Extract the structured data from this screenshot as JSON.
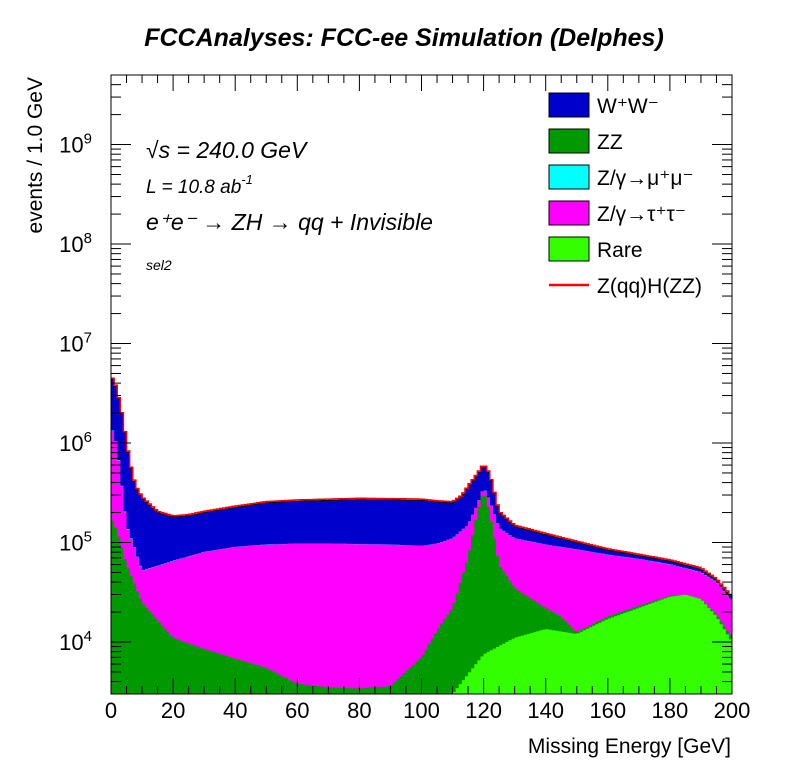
{
  "chart_data": {
    "type": "area",
    "stacked": true,
    "title": "FCCAnalyses: FCC-ee Simulation (Delphes)",
    "xlabel": "Missing Energy [GeV]",
    "ylabel": "events / 1.0 GeV",
    "xlim": [
      0,
      200
    ],
    "ylim": [
      3000,
      5000000000
    ],
    "yscale": "log",
    "x_ticks": [
      "0",
      "20",
      "40",
      "60",
      "80",
      "100",
      "120",
      "140",
      "160",
      "180",
      "200"
    ],
    "y_ticks": [
      {
        "value": 10000,
        "mantissa": "10",
        "exp": "4"
      },
      {
        "value": 100000,
        "mantissa": "10",
        "exp": "5"
      },
      {
        "value": 1000000,
        "mantissa": "10",
        "exp": "6"
      },
      {
        "value": 10000000,
        "mantissa": "10",
        "exp": "7"
      },
      {
        "value": 100000000,
        "mantissa": "10",
        "exp": "8"
      },
      {
        "value": 1000000000,
        "mantissa": "10",
        "exp": "9"
      }
    ],
    "annotations": {
      "sqrt_s": "√s = 240.0 GeV",
      "lumi_base": "L = 10.8 ab",
      "lumi_exp": "-1",
      "process": "e⁺e⁻ → ZH → qq + Invisible",
      "selection": "sel2"
    },
    "legend": {
      "placement": "top-right",
      "entries": [
        {
          "label": "W⁺W⁻",
          "color": "#0000cc",
          "style": "fill"
        },
        {
          "label": "ZZ",
          "color": "#009900",
          "style": "fill"
        },
        {
          "label": "Z/γ→μ⁺μ⁻",
          "color": "#00ffff",
          "style": "fill"
        },
        {
          "label": "Z/γ→τ⁺τ⁻",
          "color": "#ff00ff",
          "style": "fill"
        },
        {
          "label": "Rare",
          "color": "#33ff00",
          "style": "fill"
        },
        {
          "label": "Z(qq)H(ZZ)",
          "color": "#ff0000",
          "style": "line"
        }
      ]
    },
    "stack_boundaries": [
      {
        "name": "Rare",
        "color": "#33ff00",
        "points": [
          [
            0,
            3000
          ],
          [
            100,
            3000
          ],
          [
            110,
            3000
          ],
          [
            120,
            7500
          ],
          [
            130,
            11000
          ],
          [
            140,
            13500
          ],
          [
            150,
            12000
          ],
          [
            160,
            17000
          ],
          [
            170,
            22000
          ],
          [
            180,
            28500
          ],
          [
            185,
            30000
          ],
          [
            190,
            27000
          ],
          [
            195,
            18000
          ],
          [
            200,
            10000
          ]
        ]
      },
      {
        "name": "ZZ",
        "color": "#009900",
        "points": [
          [
            0,
            180000
          ],
          [
            2,
            130000
          ],
          [
            5,
            60000
          ],
          [
            10,
            25000
          ],
          [
            20,
            11000
          ],
          [
            30,
            8500
          ],
          [
            40,
            6800
          ],
          [
            50,
            5500
          ],
          [
            60,
            3800
          ],
          [
            70,
            3500
          ],
          [
            80,
            3400
          ],
          [
            90,
            3600
          ],
          [
            100,
            7000
          ],
          [
            105,
            13000
          ],
          [
            110,
            22000
          ],
          [
            115,
            70000
          ],
          [
            118,
            200000
          ],
          [
            120,
            330000
          ],
          [
            122,
            200000
          ],
          [
            125,
            60000
          ],
          [
            130,
            35000
          ],
          [
            140,
            22000
          ],
          [
            145,
            18000
          ],
          [
            150,
            12500
          ],
          [
            155,
            15000
          ],
          [
            160,
            18000
          ],
          [
            170,
            23000
          ],
          [
            180,
            29000
          ],
          [
            185,
            30000
          ],
          [
            190,
            27000
          ],
          [
            195,
            19000
          ],
          [
            200,
            11000
          ]
        ]
      },
      {
        "name": "Z/γ→τ⁺τ⁻",
        "color": "#ff00ff",
        "points": [
          [
            0,
            1500000
          ],
          [
            2,
            900000
          ],
          [
            5,
            150000
          ],
          [
            10,
            52000
          ],
          [
            15,
            58000
          ],
          [
            20,
            65000
          ],
          [
            30,
            80000
          ],
          [
            40,
            90000
          ],
          [
            50,
            95000
          ],
          [
            60,
            97000
          ],
          [
            70,
            97000
          ],
          [
            80,
            96000
          ],
          [
            90,
            95000
          ],
          [
            100,
            92000
          ],
          [
            105,
            97000
          ],
          [
            110,
            110000
          ],
          [
            115,
            150000
          ],
          [
            118,
            240000
          ],
          [
            120,
            360000
          ],
          [
            122,
            260000
          ],
          [
            125,
            140000
          ],
          [
            130,
            110000
          ],
          [
            140,
            95000
          ],
          [
            150,
            85000
          ],
          [
            160,
            75000
          ],
          [
            170,
            68000
          ],
          [
            180,
            60000
          ],
          [
            190,
            50000
          ],
          [
            195,
            40000
          ],
          [
            200,
            26000
          ]
        ]
      },
      {
        "name": "Z/γ→μ⁺μ⁻",
        "color": "#00ffff",
        "points": [
          [
            0,
            1520000
          ],
          [
            2,
            910000
          ],
          [
            5,
            152000
          ],
          [
            10,
            52500
          ],
          [
            15,
            58500
          ],
          [
            20,
            65500
          ],
          [
            30,
            80500
          ],
          [
            40,
            90500
          ],
          [
            50,
            95500
          ],
          [
            60,
            97500
          ],
          [
            70,
            97500
          ],
          [
            80,
            96500
          ],
          [
            90,
            95500
          ],
          [
            100,
            92500
          ],
          [
            105,
            97500
          ],
          [
            110,
            110500
          ],
          [
            115,
            150500
          ],
          [
            118,
            241000
          ],
          [
            120,
            361000
          ],
          [
            122,
            261000
          ],
          [
            125,
            140500
          ],
          [
            130,
            110500
          ],
          [
            140,
            95500
          ],
          [
            150,
            85500
          ],
          [
            160,
            75500
          ],
          [
            170,
            68500
          ],
          [
            180,
            60500
          ],
          [
            190,
            50500
          ],
          [
            195,
            40500
          ],
          [
            200,
            26200
          ]
        ]
      },
      {
        "name": "W⁺W⁻",
        "color": "#0000cc",
        "points": [
          [
            0,
            4400000
          ],
          [
            1,
            4300000
          ],
          [
            2,
            3200000
          ],
          [
            3,
            2400000
          ],
          [
            4,
            1600000
          ],
          [
            5,
            1000000
          ],
          [
            6,
            650000
          ],
          [
            7,
            470000
          ],
          [
            8,
            360000
          ],
          [
            10,
            280000
          ],
          [
            15,
            200000
          ],
          [
            20,
            180000
          ],
          [
            25,
            185000
          ],
          [
            30,
            200000
          ],
          [
            40,
            225000
          ],
          [
            50,
            250000
          ],
          [
            60,
            260000
          ],
          [
            70,
            265000
          ],
          [
            80,
            270000
          ],
          [
            90,
            268000
          ],
          [
            100,
            265000
          ],
          [
            105,
            255000
          ],
          [
            110,
            250000
          ],
          [
            113,
            290000
          ],
          [
            115,
            360000
          ],
          [
            118,
            480000
          ],
          [
            120,
            600000
          ],
          [
            122,
            480000
          ],
          [
            125,
            200000
          ],
          [
            130,
            145000
          ],
          [
            140,
            120000
          ],
          [
            150,
            100000
          ],
          [
            160,
            84000
          ],
          [
            170,
            74000
          ],
          [
            180,
            65000
          ],
          [
            190,
            54000
          ],
          [
            195,
            42000
          ],
          [
            200,
            28000
          ]
        ]
      }
    ],
    "signal": {
      "name": "Z(qq)H(ZZ)",
      "color": "#ff0000",
      "offset_factor": 1.03
    }
  }
}
